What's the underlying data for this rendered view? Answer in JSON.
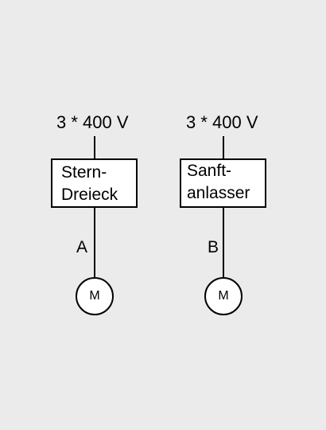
{
  "branches": [
    {
      "supply": "3 * 400 V",
      "starter_line1": "Stern-",
      "starter_line2": "Dreieck",
      "cable_label": "A",
      "motor_label": "M"
    },
    {
      "supply": "3 * 400 V",
      "starter_line1": "Sanft-",
      "starter_line2": "anlasser",
      "cable_label": "B",
      "motor_label": "M"
    }
  ]
}
